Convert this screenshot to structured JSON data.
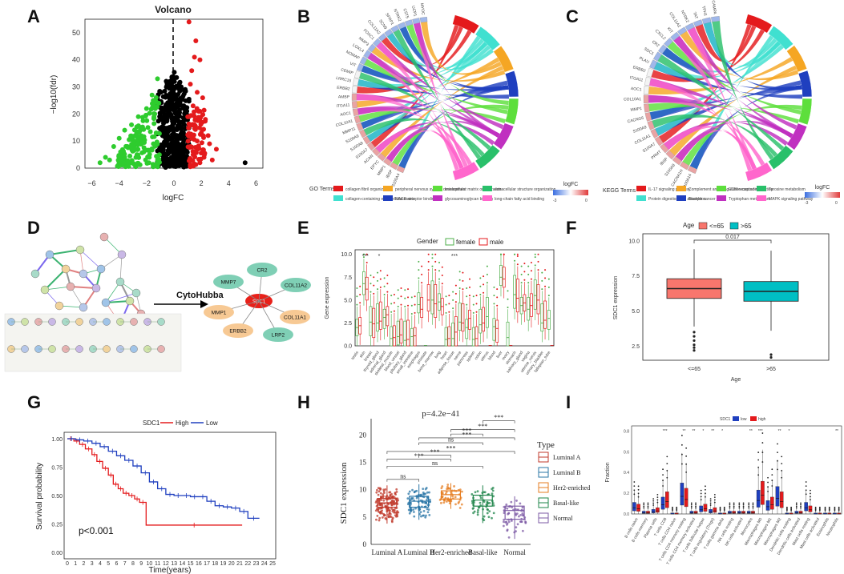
{
  "panels": {
    "A": "A",
    "B": "B",
    "C": "C",
    "D": "D",
    "E": "E",
    "F": "F",
    "G": "G",
    "H": "H",
    "I": "I"
  },
  "colors": {
    "up": "#e41a1c",
    "down": "#2ecc2e",
    "ns": "#000000",
    "high": "#e41a1c",
    "low": "#1f3fbf",
    "age_le65": "#f8766d",
    "age_gt65": "#00bfc4",
    "female": "#4daf4a",
    "male": "#e41a1c"
  },
  "chart_data": [
    {
      "id": "A",
      "type": "scatter",
      "title": "Volcano",
      "xlabel": "logFC",
      "ylabel": "−log10(fdr)",
      "xlim": [
        -6.5,
        6.5
      ],
      "ylim": [
        0,
        55
      ],
      "xticks": [
        "−6",
        "−4",
        "−2",
        "0",
        "2",
        "4",
        "6"
      ],
      "yticks": [
        "0",
        "10",
        "20",
        "30",
        "40",
        "50"
      ],
      "groups": [
        "down",
        "ns",
        "up"
      ],
      "points_up": [
        [
          1.1,
          54
        ],
        [
          1.6,
          47
        ],
        [
          1.5,
          41
        ],
        [
          1.9,
          40
        ],
        [
          1.3,
          36
        ],
        [
          1.2,
          31
        ],
        [
          1.7,
          28
        ],
        [
          2.1,
          26
        ],
        [
          1.4,
          23
        ],
        [
          1.8,
          21
        ],
        [
          2.3,
          18
        ],
        [
          1.5,
          16
        ],
        [
          2.0,
          13
        ],
        [
          2.6,
          9
        ],
        [
          3.1,
          7
        ],
        [
          1.3,
          11
        ],
        [
          1.6,
          6
        ],
        [
          2.2,
          4
        ],
        [
          2.8,
          3
        ],
        [
          1.9,
          2
        ],
        [
          1.2,
          8
        ],
        [
          1.4,
          5
        ],
        [
          1.7,
          10
        ],
        [
          2.5,
          12
        ],
        [
          1.1,
          19
        ]
      ],
      "points_down": [
        [
          -1.2,
          33
        ],
        [
          -1.6,
          27
        ],
        [
          -2.0,
          22
        ],
        [
          -2.6,
          19
        ],
        [
          -3.1,
          16
        ],
        [
          -3.6,
          14
        ],
        [
          -4.0,
          11
        ],
        [
          -4.4,
          8
        ],
        [
          -5.0,
          4
        ],
        [
          -5.4,
          2
        ],
        [
          -1.4,
          20
        ],
        [
          -1.9,
          15
        ],
        [
          -2.4,
          12
        ],
        [
          -2.9,
          10
        ],
        [
          -3.4,
          8
        ],
        [
          -1.5,
          9
        ],
        [
          -2.2,
          6
        ],
        [
          -1.1,
          24
        ],
        [
          -1.3,
          13
        ],
        [
          -2.7,
          5
        ],
        [
          -3.9,
          6
        ],
        [
          -4.7,
          3
        ],
        [
          -1.8,
          4
        ],
        [
          -1.2,
          3
        ],
        [
          -3.2,
          2
        ]
      ],
      "points_other": [
        [
          5.2,
          2
        ]
      ]
    },
    {
      "id": "B",
      "type": "chord",
      "legend_title": "GO Terms",
      "scale_title": "logFC",
      "scale_ticks": [
        "-3",
        "0"
      ],
      "genes": [
        "S100A4",
        "IBSP",
        "MMP1",
        "EPYC",
        "ACAN",
        "S100A7",
        "S100A8",
        "S100A9",
        "MMP11",
        "COL10A1",
        "AOC1",
        "ITGA11",
        "AMBP",
        "ERBB2",
        "LRRC15",
        "CEMIP",
        "VIT",
        "NOMAP",
        "LOXL4",
        "MMP3",
        "FOXC1",
        "COL11A2",
        "SCN9",
        "SFRP1",
        "NTRK2",
        "CST5",
        "UCP1",
        "MYOC"
      ],
      "terms": [
        "collagen fibril organization",
        "collagen-containing extracellular matrix",
        "peripheral nervous system development",
        "RAGE receptor binding",
        "extracellular matrix organization",
        "glycosaminoglycan binding",
        "extracellular structure organization",
        "long-chain fatty acid binding"
      ]
    },
    {
      "id": "C",
      "type": "chord",
      "legend_title": "KEGG Terms",
      "scale_title": "logFC",
      "scale_ticks": [
        "-3",
        "0"
      ],
      "genes": [
        "S100A14",
        "CACNA1H",
        "S100A8",
        "IBSP",
        "PRMT",
        "S100A7",
        "COL11A1",
        "S100A9",
        "CACNG6",
        "MMP1",
        "COL10A1",
        "AOC1",
        "ITGA11",
        "ERBB2",
        "PLAU",
        "SDC1",
        "CR2",
        "CXCL2",
        "KIT",
        "COL11A2",
        "NTRK2",
        "TAT",
        "TPH1",
        "CAMPA"
      ],
      "terms": [
        "IL-17 signaling pathway",
        "Protein digestion and absorption",
        "Complement and coagulation cascades",
        "Bladder cancer",
        "ECM-receptor interaction",
        "Tryptophan metabolism",
        "Tyrosine metabolism",
        "MAPK signaling pathway"
      ]
    },
    {
      "id": "E",
      "type": "box",
      "legend_title": "Gender",
      "groups": [
        "female",
        "male"
      ],
      "ylabel": "Gene expression",
      "yticks": [
        "0.0",
        "2.5",
        "5.0",
        "7.5",
        "10.0"
      ],
      "ylim": [
        0,
        10.5
      ],
      "categories": [
        "testis",
        "skin",
        "breast",
        "thyroid_gland",
        "adrenal_gland",
        "skeletal_muscle",
        "blood_vessel",
        "pituitary_gland",
        "small_intestine",
        "esophagus",
        "prostate",
        "bone_marrow",
        "lung",
        "heart",
        "adipose_tissue",
        "nerve",
        "pancreas",
        "spleen",
        "colon",
        "uterus",
        "blood",
        "liver",
        "ovary",
        "stomach",
        "salivary_gland",
        "vagina",
        "uterine_cervix",
        "urinary_bladder",
        "fallopian_tube"
      ],
      "female_medians": [
        2.0,
        6.8,
        2.6,
        2.5,
        3.1,
        0.8,
        1.0,
        0.6,
        1.0,
        4.5,
        0,
        5.0,
        4.8,
        0.7,
        0.8,
        2.6,
        2.0,
        0.7,
        2.3,
        3.2,
        2.1,
        7.5,
        0.9,
        5.6,
        4.4,
        4.0,
        5.5,
        2.5,
        3.0
      ],
      "male_medians": [
        2.2,
        6.2,
        2.4,
        2.7,
        3.4,
        0.9,
        1.2,
        0.7,
        1.1,
        4.0,
        5.0,
        4.6,
        4.3,
        0.8,
        1.5,
        2.5,
        3.0,
        0.8,
        2.5,
        0,
        1.9,
        7.3,
        0,
        5.2,
        4.7,
        4.4,
        5.0,
        2.8,
        0
      ],
      "sig_labels": [
        {
          "cat": "skin",
          "text": "***"
        },
        {
          "cat": "thyroid_gland",
          "text": "*"
        },
        {
          "cat": "adipose_tissue",
          "text": "***"
        }
      ]
    },
    {
      "id": "F",
      "type": "box",
      "legend_title": "Age",
      "groups": [
        "<=65",
        ">65"
      ],
      "xlabel": "Age",
      "ylabel": "SDC1 expression",
      "pvalue": "0.017",
      "yticks": [
        "2.5",
        "5.0",
        "7.5",
        "10.0"
      ],
      "ylim": [
        1.5,
        10.5
      ],
      "categories": [
        "<=65",
        ">65"
      ],
      "stats": [
        {
          "q1": 5.9,
          "median": 6.6,
          "q3": 7.3,
          "lo": 3.9,
          "hi": 9.4
        },
        {
          "q1": 5.7,
          "median": 6.4,
          "q3": 7.1,
          "lo": 3.6,
          "hi": 9.3
        }
      ]
    },
    {
      "id": "G",
      "type": "line",
      "legend_title": "SDC1",
      "groups": [
        "High",
        "Low"
      ],
      "xlabel": "Time(years)",
      "ylabel": "Survival probability",
      "pvalue_text": "p<0.001",
      "xlim": [
        0,
        25
      ],
      "ylim": [
        0,
        1
      ],
      "xticks": [
        "0",
        "1",
        "2",
        "3",
        "4",
        "5",
        "6",
        "7",
        "8",
        "9",
        "10",
        "11",
        "12",
        "13",
        "14",
        "15",
        "16",
        "17",
        "18",
        "19",
        "20",
        "21",
        "22",
        "23",
        "24",
        "25"
      ],
      "yticks": [
        "0.00",
        "0.25",
        "0.50",
        "0.75",
        "1.00"
      ],
      "series": [
        {
          "name": "High",
          "x": [
            0,
            0.8,
            1.5,
            2.2,
            3.0,
            3.6,
            4.3,
            5.0,
            5.6,
            6.2,
            6.8,
            7.5,
            8.2,
            8.8,
            9.6,
            21.3
          ],
          "y": [
            1.0,
            0.98,
            0.95,
            0.91,
            0.86,
            0.8,
            0.74,
            0.68,
            0.6,
            0.56,
            0.52,
            0.5,
            0.47,
            0.44,
            0.24,
            0.24
          ]
        },
        {
          "name": "Low",
          "x": [
            0,
            1,
            2,
            3,
            4,
            5,
            6,
            7,
            8,
            9,
            10,
            11,
            12,
            13,
            14,
            15,
            16,
            17,
            18,
            19,
            20,
            21,
            22,
            23.4
          ],
          "y": [
            1.0,
            0.99,
            0.98,
            0.96,
            0.93,
            0.89,
            0.85,
            0.81,
            0.76,
            0.7,
            0.62,
            0.56,
            0.51,
            0.5,
            0.5,
            0.49,
            0.49,
            0.45,
            0.41,
            0.4,
            0.39,
            0.36,
            0.3,
            0.3
          ]
        }
      ]
    },
    {
      "id": "H",
      "type": "box",
      "title": "p=4.2e−41",
      "legend_title": "Type",
      "ylabel": "SDC1 expression",
      "yticks": [
        "0",
        "5",
        "10",
        "15",
        "20"
      ],
      "ylim": [
        0,
        23
      ],
      "categories": [
        "Luminal A",
        "Luminal B",
        "Her2-enriched",
        "Basal-like",
        "Normal"
      ],
      "colors": [
        "#c0392b",
        "#2874a6",
        "#e67e22",
        "#1e8449",
        "#7d5ba6"
      ],
      "stats": [
        {
          "q1": 6.8,
          "median": 7.6,
          "q3": 8.4,
          "lo": 3.8,
          "hi": 10.8
        },
        {
          "q1": 6.8,
          "median": 7.9,
          "q3": 8.8,
          "lo": 4.5,
          "hi": 11.0
        },
        {
          "q1": 8.3,
          "median": 9.1,
          "q3": 9.8,
          "lo": 6.5,
          "hi": 11.2
        },
        {
          "q1": 7.0,
          "median": 8.1,
          "q3": 9.0,
          "lo": 3.9,
          "hi": 10.8
        },
        {
          "q1": 4.6,
          "median": 6.2,
          "q3": 7.0,
          "lo": 1.0,
          "hi": 8.8
        }
      ],
      "comparisons": [
        {
          "a": 0,
          "b": 1,
          "label": "ns"
        },
        {
          "a": 0,
          "b": 2,
          "label": "***"
        },
        {
          "a": 0,
          "b": 3,
          "label": "ns"
        },
        {
          "a": 0,
          "b": 4,
          "label": "***"
        },
        {
          "a": 1,
          "b": 2,
          "label": "***"
        },
        {
          "a": 1,
          "b": 3,
          "label": "ns"
        },
        {
          "a": 1,
          "b": 4,
          "label": "***"
        },
        {
          "a": 2,
          "b": 3,
          "label": "***"
        },
        {
          "a": 2,
          "b": 4,
          "label": "***"
        },
        {
          "a": 3,
          "b": 4,
          "label": "***"
        }
      ]
    },
    {
      "id": "I",
      "type": "box",
      "legend_title": "SDC1",
      "groups": [
        "low",
        "high"
      ],
      "ylabel": "Fraction",
      "yticks": [
        "0.0",
        "0.2",
        "0.4",
        "0.6",
        "0.8"
      ],
      "ylim": [
        0,
        0.85
      ],
      "categories": [
        "B cells naive",
        "B cells memory",
        "Plasma cells",
        "T cells CD8",
        "T cells CD4 naive",
        "T cells CD4 memory resting",
        "T cells CD4 memory activated",
        "T cells follicular helper",
        "T cells regulatory (Tregs)",
        "T cells gamma delta",
        "NK cells resting",
        "NK cells activated",
        "Monocytes",
        "Macrophages M0",
        "Macrophages M1",
        "Macrophages M2",
        "Dendritic cells resting",
        "Dendritic cells activated",
        "Mast cells resting",
        "Mast cells activated",
        "Eosinophils",
        "Neutrophils"
      ],
      "low_medians": [
        0.06,
        0.01,
        0.02,
        0.09,
        0.0,
        0.17,
        0.01,
        0.04,
        0.02,
        0.0,
        0.01,
        0.01,
        0.01,
        0.13,
        0.07,
        0.15,
        0.0,
        0.01,
        0.06,
        0.0,
        0.0,
        0.0
      ],
      "high_medians": [
        0.05,
        0.01,
        0.03,
        0.12,
        0.0,
        0.14,
        0.01,
        0.05,
        0.03,
        0.0,
        0.01,
        0.01,
        0.01,
        0.18,
        0.09,
        0.12,
        0.0,
        0.01,
        0.04,
        0.0,
        0.0,
        0.0
      ],
      "sig_labels": [
        "",
        "",
        "",
        "***",
        "",
        "**",
        "**",
        "*",
        "**",
        "*",
        "",
        "",
        "**",
        "***",
        "",
        "**",
        "*",
        "",
        "",
        "",
        "",
        "**"
      ]
    }
  ],
  "diagram_D": {
    "arrow_label": "CytoHubba",
    "center": "SDC1",
    "hubs": [
      "CR2",
      "COL11A2",
      "COL11A1",
      "LRP2",
      "ERBB2",
      "MMP1",
      "MMP7"
    ]
  }
}
